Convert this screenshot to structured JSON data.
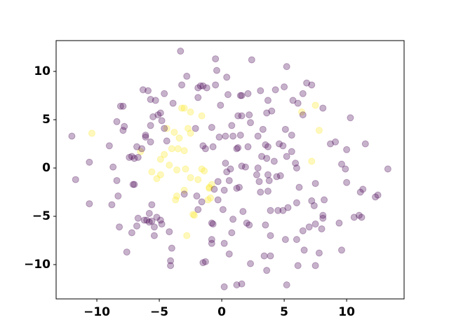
{
  "chart_data": {
    "type": "scatter",
    "grid": false,
    "alpha": 0.3,
    "xlim": [
      -13.26,
      14.6
    ],
    "ylim": [
      -13.55,
      13.19
    ],
    "xticks": [
      {
        "value": -10,
        "label": "−10"
      },
      {
        "value": -5,
        "label": "−5"
      },
      0,
      5,
      10
    ],
    "yticks": [
      {
        "value": -10,
        "label": "−10"
      },
      {
        "value": -5,
        "label": "−5"
      },
      0,
      5,
      10
    ],
    "series": [
      {
        "color": "#fde725",
        "x": [
          -10.4,
          -3.2,
          -3.0,
          -2.5,
          -1.6,
          -6.5,
          -4.4,
          -3.8,
          -3.4,
          -2.7,
          -2.5,
          -4.0,
          -3.5,
          -3.0,
          -4.6,
          -5.6,
          -5.2,
          -4.2,
          -3.6,
          -2.9,
          -2.5,
          -1.6,
          -1.4,
          -1.0,
          -0.8,
          -3.0,
          -3.6,
          -3.7,
          -2.3,
          -2.2,
          -2.8,
          -4.9,
          -1.9,
          -0.9,
          -1.1,
          -1.0,
          6.4,
          7.5,
          7.8,
          7.2,
          -4.9
        ],
        "values": [
          3.6,
          6.2,
          6.2,
          5.8,
          5.4,
          1.7,
          4.1,
          3.7,
          3.1,
          4.1,
          3.6,
          2.0,
          2.0,
          1.8,
          1.4,
          -0.4,
          -1.1,
          0.3,
          -0.2,
          -0.1,
          -1.0,
          -0.1,
          -0.3,
          -2.0,
          -1.7,
          -2.3,
          -2.9,
          -3.3,
          -4.8,
          -4.9,
          -7.0,
          0.9,
          -1.2,
          -3.1,
          -3.3,
          -2.1,
          5.8,
          6.5,
          3.9,
          0.7,
          -0.7
        ]
      },
      {
        "color": "#440154",
        "x": [
          -12.0,
          -11.7,
          -10.6,
          -10.6,
          -9.0,
          -8.7,
          -8.4,
          -8.3,
          -8.8,
          -8.4,
          -8.1,
          -7.9,
          -7.9,
          -7.8,
          -7.2,
          -7.4,
          -7.0,
          -7.1,
          -7.0,
          -6.8,
          -6.7,
          -6.4,
          -6.1,
          -5.7,
          -6.1,
          -6.3,
          -5.9,
          -5.7,
          -5.3,
          -5.1,
          -4.9,
          -4.6,
          -5.7,
          -5.5,
          -4.8,
          -4.6,
          -4.4,
          -6.7,
          -7.2,
          -8.2,
          -7.6,
          -6.8,
          -6.2,
          -6.0,
          -5.8,
          -5.6,
          -5.4,
          -5.2,
          -4.9,
          -4.8,
          -5.4,
          -5.6,
          -5.8,
          -4.2,
          -4.0,
          -4.1,
          -4.1,
          -3.3,
          -3.2,
          -2.1,
          -1.9,
          -1.7,
          -1.5,
          -1.2,
          -0.5,
          -0.4,
          0.5,
          0.4,
          -0.1,
          -0.8,
          -1.5,
          -1.3,
          -0.7,
          -0.2,
          0.3,
          0.8,
          0.9,
          1.5,
          1.6,
          2.2,
          2.3,
          1.6,
          1.5,
          2.4,
          3.1,
          3.7,
          4.0,
          4.3,
          5.0,
          5.2,
          5.7,
          6.1,
          6.5,
          6.8,
          7.2,
          8.1,
          9.1,
          9.9,
          10.0,
          10.3,
          11.5,
          13.3,
          12.5,
          12.3,
          9.6,
          10.0,
          11.1,
          11.3,
          10.6,
          11.0,
          11.2,
          9.4,
          9.6,
          7.5,
          6.1,
          6.6,
          8.1,
          8.1,
          7.5,
          8.0,
          7.2,
          7.4,
          8.2,
          7.5,
          6.2,
          6.0,
          5.9,
          4.6,
          4.9,
          5.2,
          4.2,
          3.7,
          3.3,
          2.9,
          3.5,
          3.2,
          3.6,
          2.9,
          2.8,
          3.0,
          3.7,
          4.4,
          5.1,
          5.6,
          5.6,
          4.9,
          5.3,
          4.5,
          3.9,
          3.1,
          3.7,
          3.8,
          1.2,
          1.3,
          2.1,
          1.6,
          1.9,
          0.7,
          0.4,
          0.3,
          0.6,
          -0.3,
          -0.6,
          0.2,
          1.2,
          1.4,
          0.1,
          -0.8,
          -0.7,
          -0.3,
          2.0,
          2.2,
          0.9,
          0.8,
          -0.8,
          -0.8,
          0.2,
          0.6,
          -1.3,
          -1.5,
          1.2,
          1.6,
          0.2,
          2.3,
          3.4,
          3.9,
          3.6,
          3.9,
          3.5,
          5.2,
          6.5,
          6.0,
          5.1,
          -1.9,
          -1.6,
          -2.0,
          -3.0,
          -2.8,
          -0.5,
          -1.9,
          1.3,
          2.1,
          6.5,
          8.7,
          3.6,
          1.7,
          4.7,
          6.0,
          7.8,
          7.0,
          -3.9
        ],
        "values": [
          3.3,
          -1.2,
          0.6,
          -3.7,
          2.3,
          0.1,
          -1.3,
          -2.9,
          -3.8,
          4.8,
          6.4,
          6.4,
          3.9,
          4.3,
          1.2,
          1.1,
          1.0,
          -1.7,
          -1.7,
          2.2,
          1.1,
          2.0,
          3.2,
          2.7,
          3.4,
          8.1,
          8.0,
          7.1,
          7.0,
          5.5,
          5.7,
          7.7,
          4.4,
          5.3,
          4.9,
          4.1,
          2.8,
          -5.2,
          -6.7,
          -6.1,
          -8.7,
          -6.0,
          -5.4,
          -5.4,
          -5.6,
          -5.5,
          -6.1,
          -5.1,
          -5.4,
          -5.8,
          -7.0,
          -3.8,
          -4.7,
          -6.6,
          -8.3,
          -9.6,
          -10.1,
          12.1,
          8.6,
          4.1,
          8.3,
          8.5,
          8.5,
          8.3,
          11.3,
          10.1,
          7.6,
          9.4,
          6.5,
          4.2,
          2.3,
          2.0,
          2.2,
          3.2,
          3.3,
          4.4,
          3.3,
          3.4,
          5.4,
          5.5,
          4.7,
          7.5,
          7.5,
          11.2,
          8.0,
          7.0,
          5.9,
          8.1,
          8.4,
          10.5,
          7.0,
          6.7,
          7.7,
          8.8,
          8.6,
          6.2,
          2.7,
          -0.1,
          1.9,
          5.2,
          2.5,
          -0.1,
          -2.8,
          -3.0,
          0.4,
          -1.5,
          -2.5,
          -2.2,
          -5.1,
          -4.9,
          -5.1,
          -5.7,
          -8.5,
          -10.1,
          -10.1,
          -8.5,
          -4.9,
          -5.2,
          -5.8,
          -6.3,
          -3.4,
          -3.9,
          -3.3,
          -1.6,
          -2.0,
          0.0,
          0.5,
          2.5,
          2.3,
          1.2,
          0.7,
          2.2,
          4.0,
          3.3,
          2.4,
          1.2,
          1.0,
          0.0,
          -0.7,
          -1.4,
          -0.7,
          -0.9,
          4.0,
          3.4,
          1.7,
          -4.4,
          -4.1,
          -4.4,
          -4.4,
          -2.5,
          -2.4,
          -1.3,
          2.0,
          2.1,
          2.2,
          0.2,
          0.1,
          -0.1,
          -0.4,
          0.5,
          -1.3,
          -1.4,
          -2.2,
          -2.3,
          -2.1,
          -2.0,
          -4.3,
          -5.7,
          -5.8,
          -3.3,
          -5.7,
          -5.9,
          -5.3,
          -6.7,
          -7.4,
          -7.8,
          -7.8,
          -8.9,
          -9.7,
          -9.8,
          -12.1,
          -12.0,
          -12.3,
          -9.9,
          -9.1,
          -9.1,
          -10.6,
          -7.0,
          -5.9,
          -12.1,
          -6.5,
          -7.4,
          -7.4,
          -4.3,
          -3.5,
          -2.9,
          -2.7,
          9.5,
          8.6,
          7.3,
          5.4,
          7.7,
          5.5,
          2.5,
          5.7,
          -4.5,
          -0.8,
          -3.6,
          -8.8,
          -6.1,
          6.7
        ]
      }
    ]
  }
}
